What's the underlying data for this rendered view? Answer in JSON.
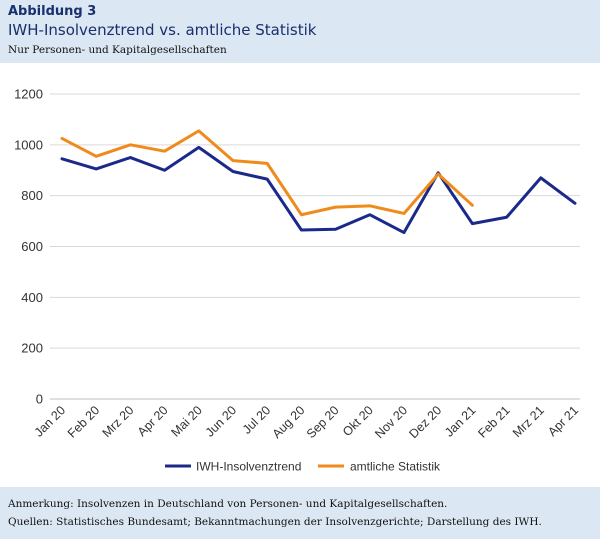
{
  "header": {
    "kicker": "Abbildung 3",
    "title": "IWH-Insolvenztrend vs. amtliche Statistik",
    "subtitle": "Nur Personen- und Kapitalgesellschaften"
  },
  "footer": {
    "note": "Anmerkung: Insolvenzen in Deutschland von Personen- und Kapitalgesellschaften.",
    "sources": "Quellen: Statistisches Bundesamt; Bekanntmachungen der Insolvenzgerichte; Darstellung des IWH."
  },
  "colors": {
    "iwh": "#1b2a8a",
    "amtlich": "#f08a1c",
    "grid": "#d9d9d9",
    "axis_text": "#333333"
  },
  "chart_data": {
    "type": "line",
    "categories": [
      "Jan 20",
      "Feb 20",
      "Mrz 20",
      "Apr 20",
      "Mai 20",
      "Jun 20",
      "Jul 20",
      "Aug 20",
      "Sep 20",
      "Okt 20",
      "Nov 20",
      "Dez 20",
      "Jan 21",
      "Feb 21",
      "Mrz 21",
      "Apr 21"
    ],
    "series": [
      {
        "name": "IWH-Insolvenztrend",
        "color": "#1b2a8a",
        "values": [
          945,
          905,
          950,
          900,
          990,
          895,
          865,
          665,
          668,
          725,
          655,
          890,
          690,
          715,
          870,
          770
        ]
      },
      {
        "name": "amtliche Statistik",
        "color": "#f08a1c",
        "values": [
          1025,
          955,
          1000,
          975,
          1055,
          938,
          927,
          725,
          755,
          760,
          730,
          885,
          762,
          null,
          null,
          null
        ]
      }
    ],
    "ylim": [
      0,
      1200
    ],
    "yticks": [
      0,
      200,
      400,
      600,
      800,
      1000,
      1200
    ],
    "grid": true,
    "legend": "bottom"
  }
}
